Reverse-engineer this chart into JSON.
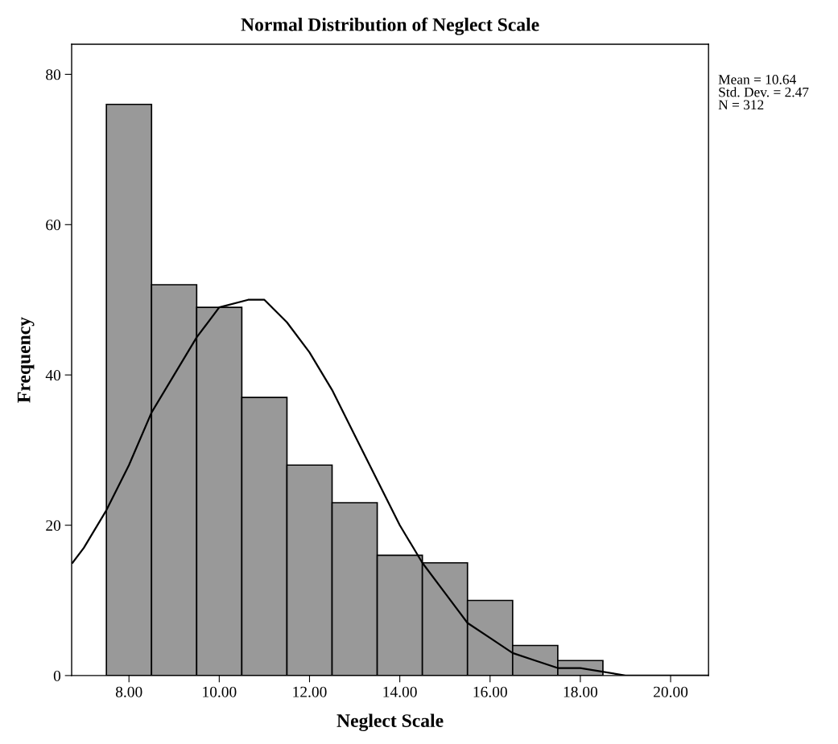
{
  "chart_data": {
    "type": "histogram",
    "title": "Normal Distribution of Neglect Scale",
    "xlabel": "Neglect Scale",
    "ylabel": "Frequency",
    "bins": [
      7.5,
      8.5,
      9.5,
      10.5,
      11.5,
      12.5,
      13.5,
      14.5,
      15.5,
      16.5,
      17.5,
      18.5
    ],
    "values": [
      76,
      52,
      49,
      37,
      28,
      23,
      16,
      15,
      10,
      4,
      2
    ],
    "color": "#999999",
    "series": [
      {
        "type": "line",
        "color": "#000000",
        "x": [
          6.75,
          7,
          7.5,
          8,
          8.5,
          9,
          9.5,
          10,
          10.64,
          11,
          11.5,
          12,
          12.5,
          13,
          13.5,
          14,
          14.5,
          15,
          15.5,
          16,
          16.5,
          17,
          17.5,
          18,
          19,
          20,
          20.84
        ],
        "values": [
          15,
          17,
          22,
          28,
          35,
          40,
          45,
          49,
          50,
          50,
          47,
          43,
          38,
          32,
          26,
          20,
          15,
          11,
          7,
          5,
          3,
          2,
          1,
          1,
          0,
          0,
          0
        ]
      }
    ],
    "xlim": [
      6.73,
      20.84
    ],
    "ylim": [
      0,
      84
    ],
    "xticks": [
      {
        "value": 8,
        "label": "8.00"
      },
      {
        "value": 10,
        "label": "10.00"
      },
      {
        "value": 12,
        "label": "12.00"
      },
      {
        "value": 14,
        "label": "14.00"
      },
      {
        "value": 16,
        "label": "16.00"
      },
      {
        "value": 18,
        "label": "18.00"
      },
      {
        "value": 20,
        "label": "20.00"
      }
    ],
    "yticks": [
      0,
      20,
      40,
      60,
      80
    ],
    "grid": false,
    "legend": false,
    "annotations": [
      "Mean = 10.64",
      "Std. Dev. = 2.47",
      "N = 312"
    ]
  }
}
